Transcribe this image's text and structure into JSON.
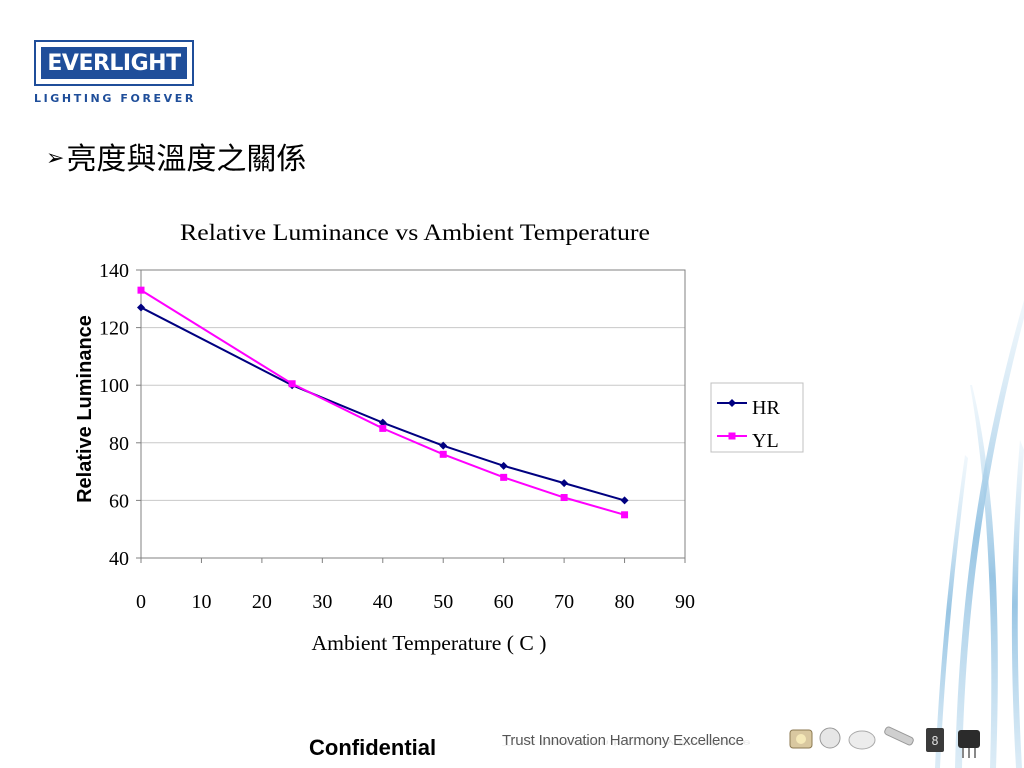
{
  "logo": {
    "brand": "EVERLIGHT",
    "tagline": "LIGHTING FOREVER"
  },
  "heading": {
    "bullet": "➢",
    "text": "亮度與溫度之關係"
  },
  "footer": {
    "confidential": "Confidential",
    "slogan": "Trust Innovation Harmony Excellence"
  },
  "colors": {
    "brand_blue": "#1f4e9a",
    "hr": "#000080",
    "yl": "#ff00ff"
  },
  "chart_data": {
    "type": "line",
    "title": "Relative Luminance vs Ambient Temperature",
    "xlabel": "Ambient Temperature ( C )",
    "ylabel": "Relative Luminance",
    "xlim": [
      0,
      90
    ],
    "ylim": [
      40,
      140
    ],
    "xticks": [
      "0",
      "10",
      "20",
      "30",
      "40",
      "50",
      "60",
      "70",
      "80",
      "90"
    ],
    "yticks": [
      "40",
      "60",
      "80",
      "100",
      "120",
      "140"
    ],
    "grid": "horizontal",
    "legend_position": "right",
    "series": [
      {
        "name": "HR",
        "marker": "diamond",
        "color": "#000080",
        "x": [
          0,
          25,
          40,
          50,
          60,
          70,
          80
        ],
        "y": [
          127,
          100,
          87,
          79,
          72,
          66,
          60
        ]
      },
      {
        "name": "YL",
        "marker": "square",
        "color": "#ff00ff",
        "x": [
          0,
          25,
          40,
          50,
          60,
          70,
          80
        ],
        "y": [
          133,
          100.5,
          85,
          76,
          68,
          61,
          55
        ]
      }
    ]
  }
}
